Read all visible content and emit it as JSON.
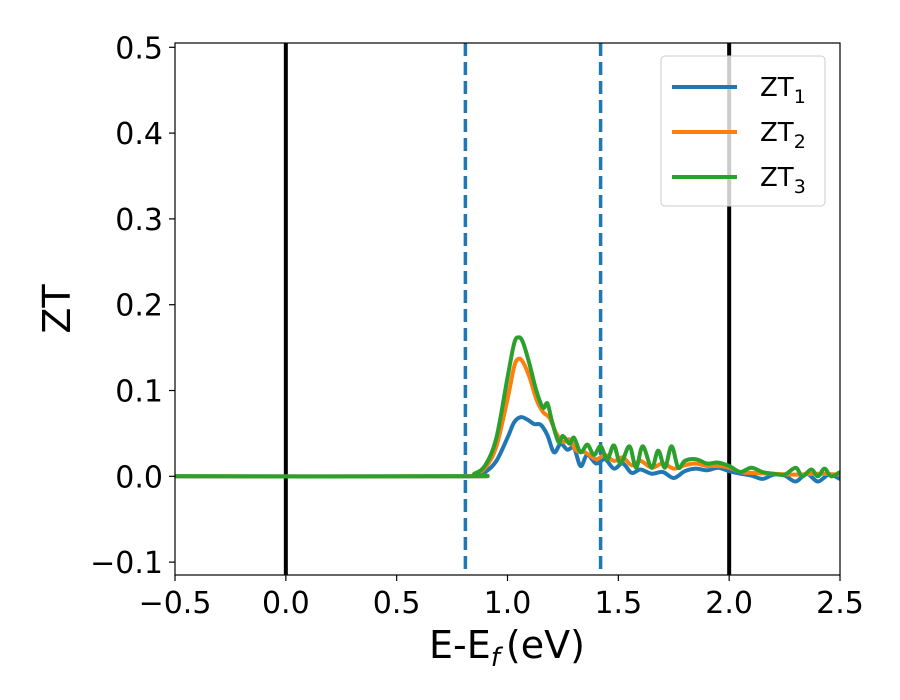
{
  "chart_data": {
    "type": "line",
    "title": "",
    "xlabel": "E-E",
    "xlabel_sub": "f",
    "xlabel_unit": "(eV)",
    "ylabel": "ZT",
    "xlim": [
      -0.5,
      2.5
    ],
    "ylim": [
      -0.115,
      0.505
    ],
    "xticks": [
      -0.5,
      0.0,
      0.5,
      1.0,
      1.5,
      2.0,
      2.5
    ],
    "xtick_labels": [
      "−0.5",
      "0.0",
      "0.5",
      "1.0",
      "1.5",
      "2.0",
      "2.5"
    ],
    "yticks": [
      -0.1,
      0.0,
      0.1,
      0.2,
      0.3,
      0.4,
      0.5
    ],
    "ytick_labels": [
      "−0.1",
      "0.0",
      "0.1",
      "0.2",
      "0.3",
      "0.4",
      "0.5"
    ],
    "grid": false,
    "legend_position": "top-right",
    "vertical_lines": [
      {
        "x": 0.0,
        "style": "solid",
        "color": "#000000"
      },
      {
        "x": 2.0,
        "style": "solid",
        "color": "#000000"
      },
      {
        "x": 0.81,
        "style": "dashed",
        "color": "#1f77b4"
      },
      {
        "x": 1.42,
        "style": "dashed",
        "color": "#1f77b4"
      }
    ],
    "series": [
      {
        "name": "ZT",
        "name_sub": "1",
        "color": "#1f77b4",
        "points": [
          [
            -0.5,
            0
          ],
          [
            0.8,
            0
          ],
          [
            0.85,
            0.001
          ],
          [
            0.9,
            0.005
          ],
          [
            0.95,
            0.018
          ],
          [
            1.0,
            0.045
          ],
          [
            1.03,
            0.063
          ],
          [
            1.06,
            0.069
          ],
          [
            1.09,
            0.066
          ],
          [
            1.12,
            0.061
          ],
          [
            1.15,
            0.06
          ],
          [
            1.18,
            0.048
          ],
          [
            1.21,
            0.028
          ],
          [
            1.24,
            0.038
          ],
          [
            1.27,
            0.031
          ],
          [
            1.3,
            0.033
          ],
          [
            1.33,
            0.012
          ],
          [
            1.36,
            0.025
          ],
          [
            1.4,
            0.015
          ],
          [
            1.44,
            0.02
          ],
          [
            1.48,
            0.009
          ],
          [
            1.52,
            0.015
          ],
          [
            1.56,
            0.004
          ],
          [
            1.6,
            0.008
          ],
          [
            1.65,
            0.003
          ],
          [
            1.7,
            0.005
          ],
          [
            1.75,
            -0.002
          ],
          [
            1.8,
            0.006
          ],
          [
            1.85,
            0.009
          ],
          [
            1.9,
            0.007
          ],
          [
            1.95,
            0.01
          ],
          [
            2.0,
            0.006
          ],
          [
            2.05,
            0.003
          ],
          [
            2.1,
            0.001
          ],
          [
            2.15,
            -0.003
          ],
          [
            2.2,
            0.002
          ],
          [
            2.25,
            0.001
          ],
          [
            2.3,
            -0.006
          ],
          [
            2.35,
            0.003
          ],
          [
            2.4,
            -0.006
          ],
          [
            2.45,
            0.002
          ],
          [
            2.5,
            -0.003
          ]
        ]
      },
      {
        "name": "ZT",
        "name_sub": "2",
        "color": "#ff7f0e",
        "points": [
          [
            -0.5,
            0
          ],
          [
            0.8,
            0
          ],
          [
            0.85,
            0.002
          ],
          [
            0.9,
            0.01
          ],
          [
            0.95,
            0.035
          ],
          [
            1.0,
            0.09
          ],
          [
            1.03,
            0.128
          ],
          [
            1.05,
            0.137
          ],
          [
            1.07,
            0.133
          ],
          [
            1.1,
            0.115
          ],
          [
            1.13,
            0.09
          ],
          [
            1.16,
            0.075
          ],
          [
            1.19,
            0.068
          ],
          [
            1.22,
            0.05
          ],
          [
            1.25,
            0.04
          ],
          [
            1.28,
            0.043
          ],
          [
            1.31,
            0.03
          ],
          [
            1.35,
            0.028
          ],
          [
            1.4,
            0.02
          ],
          [
            1.44,
            0.025
          ],
          [
            1.48,
            0.018
          ],
          [
            1.52,
            0.022
          ],
          [
            1.56,
            0.013
          ],
          [
            1.6,
            0.018
          ],
          [
            1.65,
            0.01
          ],
          [
            1.7,
            0.015
          ],
          [
            1.75,
            0.009
          ],
          [
            1.8,
            0.013
          ],
          [
            1.85,
            0.015
          ],
          [
            1.9,
            0.012
          ],
          [
            1.95,
            0.012
          ],
          [
            2.0,
            0.01
          ],
          [
            2.05,
            0.005
          ],
          [
            2.1,
            0.004
          ],
          [
            2.2,
            0.003
          ],
          [
            2.3,
            0.002
          ],
          [
            2.4,
            0.003
          ],
          [
            2.5,
            0.002
          ]
        ]
      },
      {
        "name": "ZT",
        "name_sub": "3",
        "color": "#2ca02c",
        "points": [
          [
            -0.5,
            0
          ],
          [
            0.8,
            0
          ],
          [
            0.85,
            0.003
          ],
          [
            0.9,
            0.013
          ],
          [
            0.95,
            0.045
          ],
          [
            1.0,
            0.115
          ],
          [
            1.03,
            0.155
          ],
          [
            1.05,
            0.162
          ],
          [
            1.07,
            0.156
          ],
          [
            1.1,
            0.13
          ],
          [
            1.13,
            0.1
          ],
          [
            1.16,
            0.08
          ],
          [
            1.18,
            0.085
          ],
          [
            1.2,
            0.065
          ],
          [
            1.23,
            0.04
          ],
          [
            1.25,
            0.047
          ],
          [
            1.28,
            0.038
          ],
          [
            1.3,
            0.045
          ],
          [
            1.33,
            0.028
          ],
          [
            1.36,
            0.037
          ],
          [
            1.39,
            0.025
          ],
          [
            1.42,
            0.035
          ],
          [
            1.45,
            0.02
          ],
          [
            1.48,
            0.036
          ],
          [
            1.51,
            0.015
          ],
          [
            1.55,
            0.035
          ],
          [
            1.58,
            0.01
          ],
          [
            1.61,
            0.035
          ],
          [
            1.65,
            0.01
          ],
          [
            1.68,
            0.03
          ],
          [
            1.71,
            0.01
          ],
          [
            1.74,
            0.035
          ],
          [
            1.77,
            0.01
          ],
          [
            1.8,
            0.018
          ],
          [
            1.85,
            0.02
          ],
          [
            1.9,
            0.015
          ],
          [
            1.95,
            0.016
          ],
          [
            2.0,
            0.012
          ],
          [
            2.05,
            0.005
          ],
          [
            2.1,
            0.01
          ],
          [
            2.15,
            0.005
          ],
          [
            2.2,
            0.003
          ],
          [
            2.25,
            0.002
          ],
          [
            2.3,
            0.01
          ],
          [
            2.33,
            0.0
          ],
          [
            2.37,
            0.008
          ],
          [
            2.4,
            0.0
          ],
          [
            2.43,
            0.009
          ],
          [
            2.46,
            0.0
          ],
          [
            2.5,
            0.005
          ]
        ]
      }
    ]
  }
}
